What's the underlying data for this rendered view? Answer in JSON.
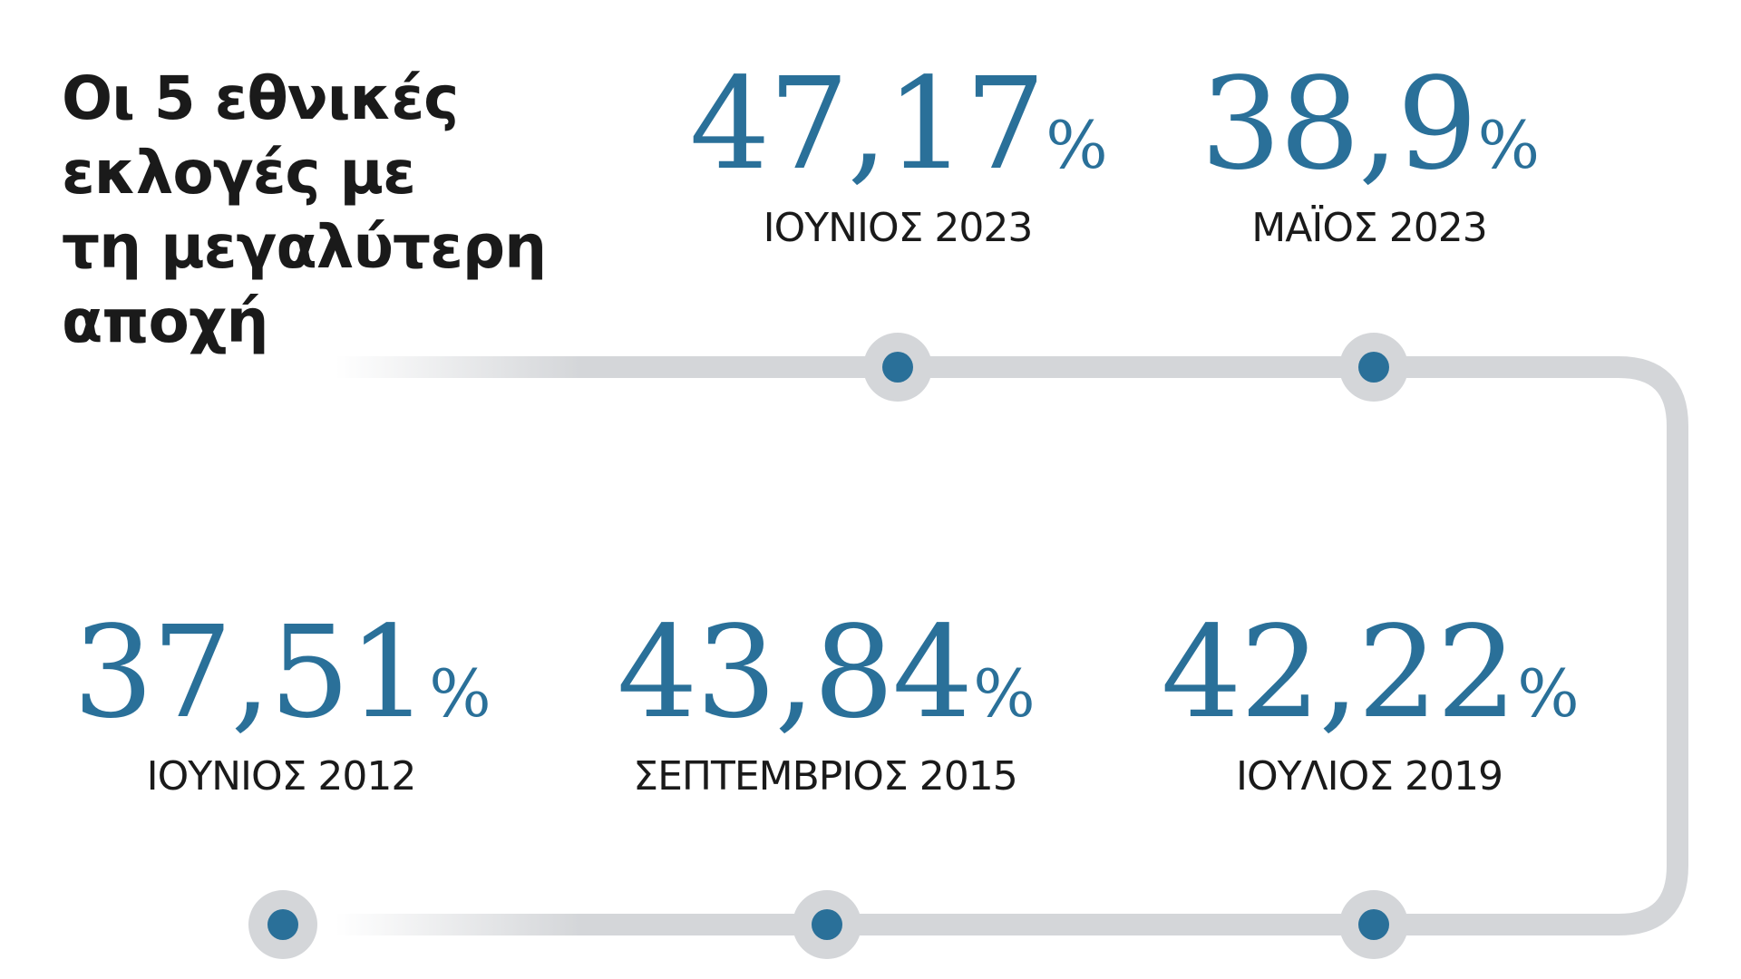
{
  "title_lines": [
    "Οι 5 εθνικές",
    "εκλογές με",
    "τη μεγαλύτερη",
    "αποχή"
  ],
  "colors": {
    "accent": "#2a7099",
    "track": "#d4d6d9",
    "text": "#1a1a1a"
  },
  "entries": [
    {
      "value": "47,17",
      "unit": "%",
      "label": "ΙΟΥΝΙΟΣ 2023"
    },
    {
      "value": "38,9",
      "unit": "%",
      "label": "ΜΑΪΟΣ 2023"
    },
    {
      "value": "42,22",
      "unit": "%",
      "label": "ΙΟΥΛΙΟΣ 2019"
    },
    {
      "value": "43,84",
      "unit": "%",
      "label": "ΣΕΠΤΕΜΒΡΙΟΣ 2015"
    },
    {
      "value": "37,51",
      "unit": "%",
      "label": "ΙΟΥΝΙΟΣ 2012"
    }
  ]
}
